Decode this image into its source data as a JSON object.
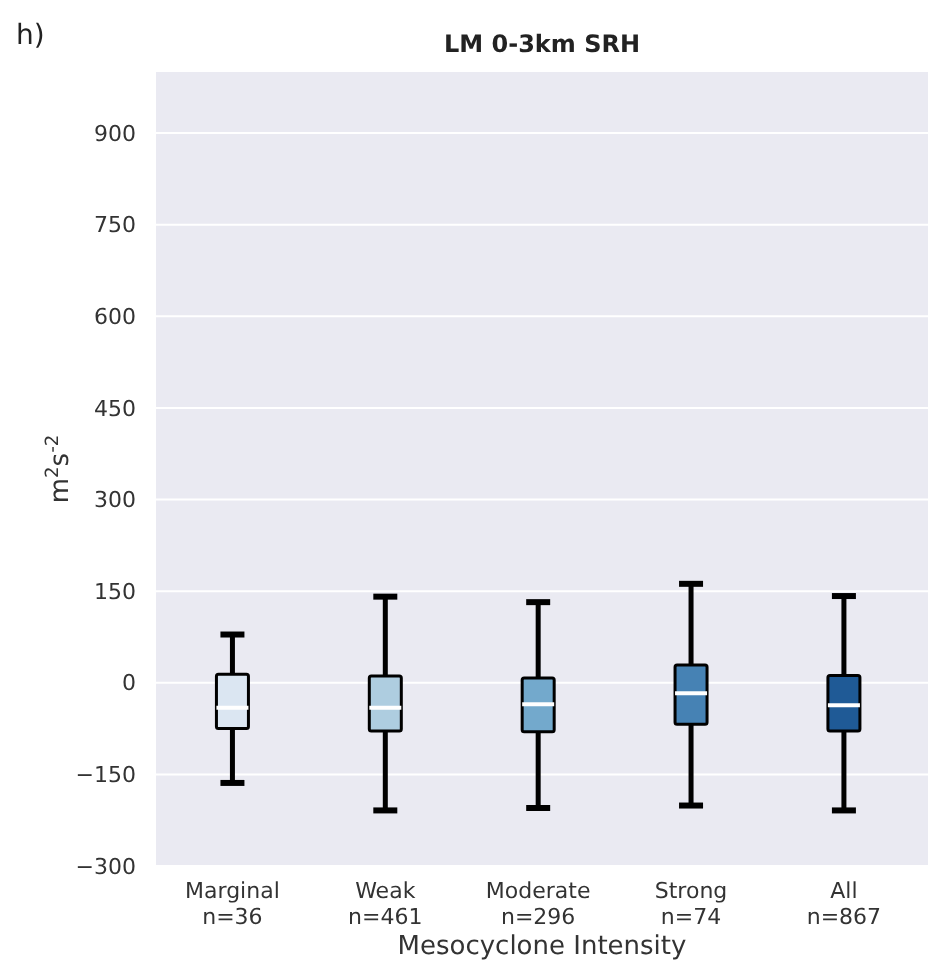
{
  "chart_data": {
    "type": "box",
    "title": "LM 0-3km SRH",
    "xlabel": "Mesocyclone Intensity",
    "ylabel": "m$^{2}$s$^{-2}$",
    "annotations": [
      "h)"
    ],
    "categories": [
      "Marginal\nn=36",
      "Weak\nn=461",
      "Moderate\nn=296",
      "Strong\nn=74",
      "All\nn=867"
    ],
    "colors": [
      "#dbe6f2",
      "#aecde0",
      "#73a9cc",
      "#4682b4",
      "#1f5a96"
    ],
    "boxes": [
      {
        "low": -164,
        "q1": -75,
        "median": -41,
        "q3": 14,
        "high": 79
      },
      {
        "low": -209,
        "q1": -79,
        "median": -41,
        "q3": 11,
        "high": 141
      },
      {
        "low": -205,
        "q1": -80,
        "median": -35,
        "q3": 8,
        "high": 132
      },
      {
        "low": -201,
        "q1": -68,
        "median": -17,
        "q3": 29,
        "high": 162
      },
      {
        "low": -209,
        "q1": -79,
        "median": -37,
        "q3": 12,
        "high": 142
      }
    ],
    "ylim": [
      -300,
      1000
    ],
    "yticks": [
      -300,
      -150,
      0,
      150,
      300,
      450,
      600,
      750,
      900
    ],
    "grid": "y"
  }
}
